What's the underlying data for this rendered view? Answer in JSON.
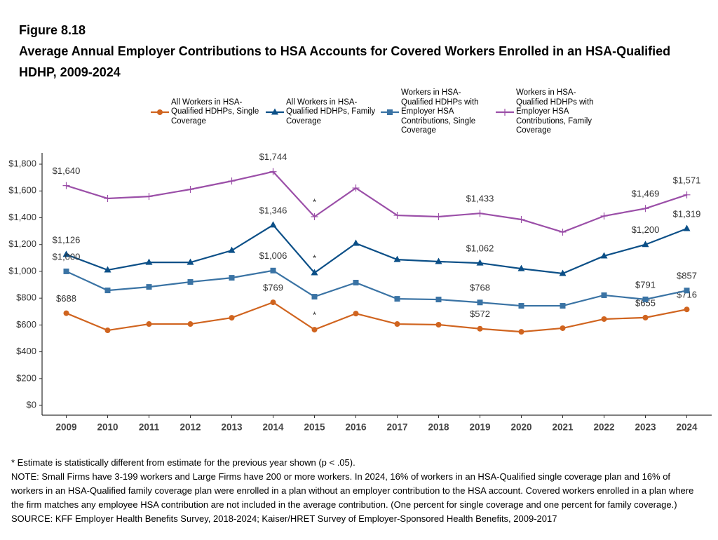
{
  "chart_data": {
    "type": "line",
    "figure": "Figure 8.18",
    "title": "Average Annual Employer Contributions to HSA Accounts for Covered Workers Enrolled in an HSA-Qualified HDHP, 2009-2024",
    "categories": [
      "2009",
      "2010",
      "2011",
      "2012",
      "2013",
      "2014",
      "2015",
      "2016",
      "2017",
      "2018",
      "2019",
      "2020",
      "2021",
      "2022",
      "2023",
      "2024"
    ],
    "legend": "top",
    "grid": false,
    "ylim": [
      -73,
      1884
    ],
    "yticks": [
      {
        "value": 0,
        "label": "$0"
      },
      {
        "value": 200,
        "label": "$200"
      },
      {
        "value": 400,
        "label": "$400"
      },
      {
        "value": 600,
        "label": "$600"
      },
      {
        "value": 800,
        "label": "$800"
      },
      {
        "value": 1000,
        "label": "$1,000"
      },
      {
        "value": 1200,
        "label": "$1,200"
      },
      {
        "value": 1400,
        "label": "$1,400"
      },
      {
        "value": 1600,
        "label": "$1,600"
      },
      {
        "value": 1800,
        "label": "$1,800"
      }
    ],
    "series": [
      {
        "name": "All Workers in HSA-Qualified HDHPs, Single Coverage",
        "color": "#d0641f",
        "marker": "circle",
        "values": [
          688,
          560,
          607,
          607,
          654,
          769,
          565,
          685,
          607,
          602,
          572,
          549,
          576,
          644,
          655,
          716
        ],
        "value_labels": [
          "$688",
          null,
          null,
          null,
          null,
          "$769",
          "*",
          null,
          null,
          null,
          "$572",
          null,
          null,
          null,
          "$655",
          "$716"
        ]
      },
      {
        "name": "All Workers in HSA-Qualified HDHPs, Family Coverage",
        "color": "#0b4f87",
        "marker": "triangle",
        "values": [
          1126,
          1010,
          1067,
          1067,
          1156,
          1346,
          989,
          1209,
          1088,
          1073,
          1062,
          1020,
          984,
          1115,
          1200,
          1319
        ],
        "value_labels": [
          "$1,126",
          null,
          null,
          null,
          null,
          "$1,346",
          "*",
          null,
          null,
          null,
          "$1,062",
          null,
          null,
          null,
          "$1,200",
          "$1,319"
        ]
      },
      {
        "name": "Workers in HSA-Qualified HDHPs with Employer HSA Contributions, Single Coverage",
        "color": "#3a73a4",
        "marker": "square",
        "values": [
          1000,
          858,
          884,
          921,
          952,
          1006,
          811,
          916,
          795,
          790,
          768,
          743,
          743,
          822,
          791,
          857
        ],
        "value_labels": [
          "$1,000",
          null,
          null,
          null,
          null,
          "$1,006",
          null,
          null,
          null,
          null,
          "$768",
          null,
          null,
          null,
          "$791",
          "$857"
        ]
      },
      {
        "name": "Workers in HSA-Qualified HDHPs with Employer HSA Contributions, Family Coverage",
        "color": "#9b4fa8",
        "marker": "plus",
        "values": [
          1640,
          1544,
          1559,
          1612,
          1674,
          1744,
          1408,
          1622,
          1418,
          1408,
          1433,
          1387,
          1293,
          1413,
          1469,
          1571
        ],
        "value_labels": [
          "$1,640",
          null,
          null,
          null,
          null,
          "$1,744",
          "*",
          null,
          null,
          null,
          "$1,433",
          null,
          null,
          null,
          "$1,469",
          "$1,571"
        ]
      }
    ],
    "notes": [
      "* Estimate is statistically different from estimate for the previous year shown (p < .05).",
      "NOTE: Small Firms have 3-199 workers and Large Firms have 200 or more workers. In 2024, 16% of workers in an HSA-Qualified single coverage plan and 16% of workers in an HSA-Qualified family coverage plan were enrolled in a plan without an employer contribution to the HSA account. Covered workers enrolled in a plan where the firm matches any employee HSA contribution are not included in the average contribution. (One percent for single coverage and one percent for family coverage.)",
      "SOURCE: KFF Employer Health Benefits Survey, 2018-2024; Kaiser/HRET Survey of Employer-Sponsored Health Benefits, 2009-2017"
    ]
  }
}
